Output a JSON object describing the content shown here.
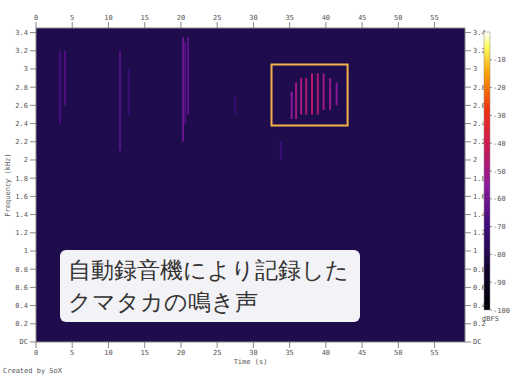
{
  "chart_data": {
    "type": "spectrogram",
    "x_label": "Time (s)",
    "y_label": "Frequency (kHz)",
    "xlim": [
      0,
      59.2
    ],
    "xticks": [
      0,
      5,
      10,
      15,
      20,
      25,
      30,
      35,
      40,
      45,
      50,
      55
    ],
    "ylim": [
      0,
      3.45
    ],
    "yticks": [
      {
        "value": 0,
        "label": "DC"
      },
      0.2,
      0.4,
      0.6,
      0.8,
      1,
      1.2,
      1.4,
      1.6,
      1.8,
      2,
      2.2,
      2.4,
      2.6,
      2.8,
      3,
      3.2,
      3.4
    ],
    "events": {
      "time": [
        3.3,
        4,
        11.6,
        12.8,
        20.3,
        20.6,
        21,
        27.5,
        33.8,
        35.3,
        35.9,
        36.6,
        37.3,
        38.1,
        38.9,
        39.7,
        40.6,
        41.5
      ],
      "freq_low": [
        2.4,
        2.6,
        2.1,
        2.5,
        2.2,
        2.4,
        2.5,
        2.5,
        2.0,
        2.45,
        2.45,
        2.5,
        2.5,
        2.5,
        2.5,
        2.55,
        2.55,
        2.6
      ],
      "freq_high": [
        3.2,
        3.2,
        3.2,
        3.0,
        3.35,
        3.3,
        3.35,
        2.7,
        2.2,
        2.75,
        2.85,
        2.9,
        2.9,
        2.95,
        2.95,
        2.95,
        2.9,
        2.85
      ],
      "level": [
        -68,
        -66,
        -66,
        -70,
        -62,
        -66,
        -64,
        -72,
        -70,
        -55,
        -50,
        -48,
        -47,
        -46,
        -48,
        -50,
        -52,
        -56
      ]
    },
    "colorbar": {
      "label": "dBFS",
      "range": [
        -100,
        0
      ],
      "ticks": [
        -10,
        -20,
        -30,
        -40,
        -50,
        -60,
        -70,
        -80,
        -90,
        -100
      ]
    },
    "highlight": {
      "x": [
        32.5,
        43
      ],
      "y": [
        2.38,
        3.05
      ],
      "color": "#f5b24a"
    },
    "annotation": [
      "自動録音機により記録した",
      "クマタカの鳴き声"
    ],
    "credit": "Created by SoX"
  }
}
